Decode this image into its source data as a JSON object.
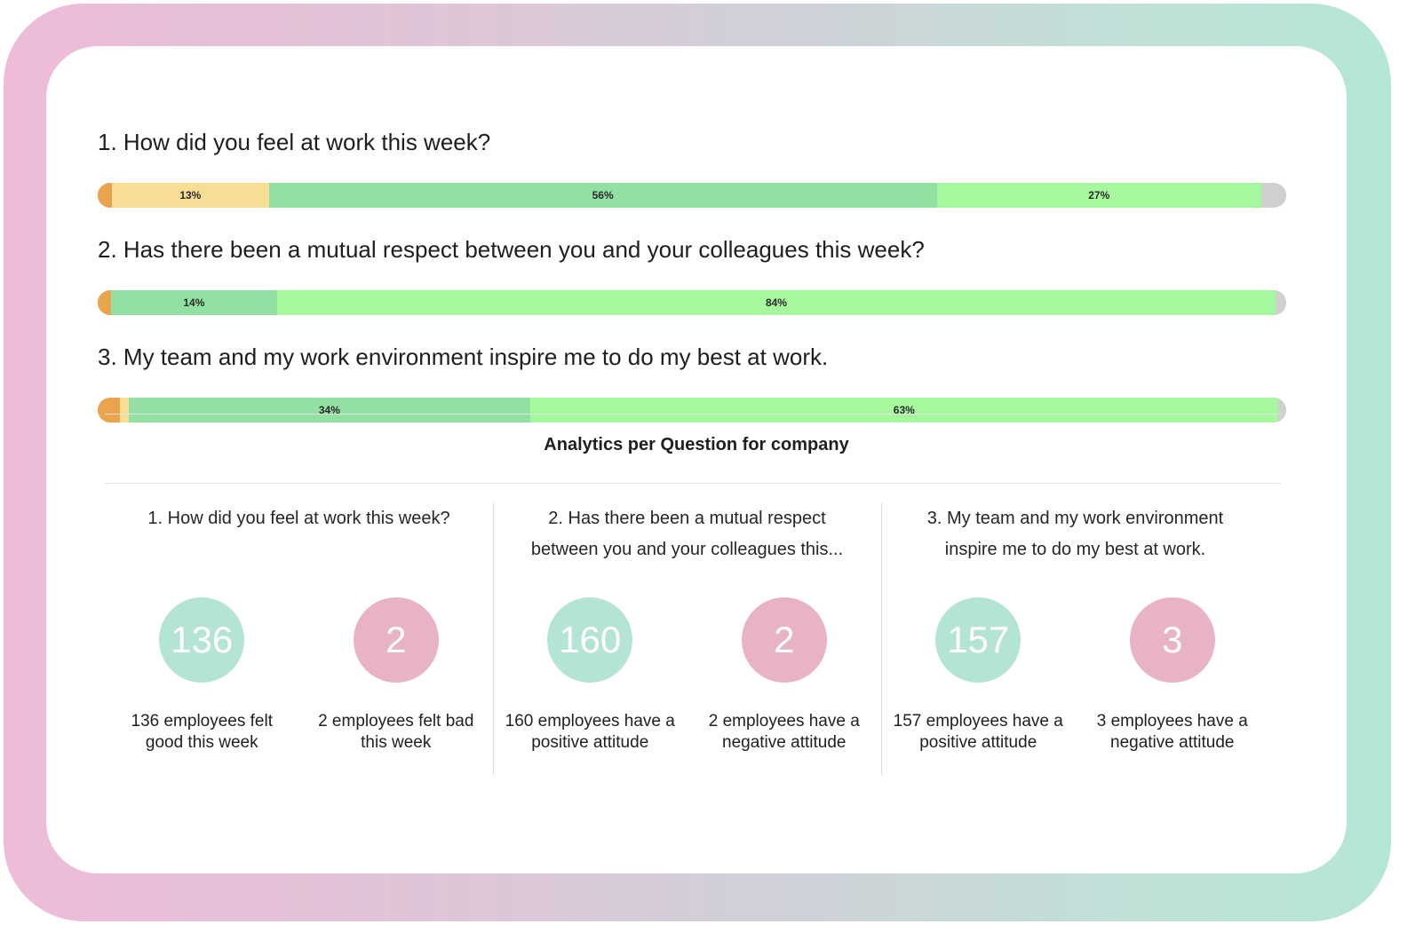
{
  "colors": {
    "very_bad": "#e9a44c",
    "bad": "#f7de94",
    "good": "#92e0a2",
    "very_good": "#a6f79e",
    "none": "#d0d0d0",
    "circle_good": "#b4e4d6",
    "circle_bad": "#e8b4c4"
  },
  "questions": [
    {
      "title": "1. How did you feel at work this week?",
      "segments": [
        {
          "level": "very_bad",
          "percent": 1.2,
          "label": ""
        },
        {
          "level": "bad",
          "percent": 13.2,
          "label": "13%"
        },
        {
          "level": "good",
          "percent": 56.2,
          "label": "56%"
        },
        {
          "level": "very_good",
          "percent": 27.3,
          "label": "27%"
        },
        {
          "level": "none",
          "percent": 2.1,
          "label": ""
        }
      ]
    },
    {
      "title": "2. Has there been a mutual respect between you and your colleagues this week?",
      "segments": [
        {
          "level": "very_bad",
          "percent": 1.1,
          "label": ""
        },
        {
          "level": "good",
          "percent": 14.0,
          "label": "14%"
        },
        {
          "level": "very_good",
          "percent": 84.0,
          "label": "84%"
        },
        {
          "level": "none",
          "percent": 0.9,
          "label": ""
        }
      ]
    },
    {
      "title": "3. My team and my work environment inspire me to do my best at work.",
      "segments": [
        {
          "level": "very_bad",
          "percent": 1.9,
          "label": ""
        },
        {
          "level": "bad",
          "percent": 0.7,
          "label": ""
        },
        {
          "level": "good",
          "percent": 33.8,
          "label": "34%"
        },
        {
          "level": "very_good",
          "percent": 62.9,
          "label": "63%"
        },
        {
          "level": "none",
          "percent": 0.7,
          "label": ""
        }
      ]
    }
  ],
  "analytics": {
    "title": "Analytics per Question for company",
    "columns": [
      {
        "title_line1": "1. How did you feel at work this week?",
        "title_line2": "",
        "good_count": "136",
        "good_desc": "136 employees felt good this week",
        "bad_count": "2",
        "bad_desc": "2 employees felt bad this week"
      },
      {
        "title_line1": "2. Has there been a mutual respect",
        "title_line2": "between you and your colleagues this...",
        "good_count": "160",
        "good_desc": "160 employees have a positive attitude",
        "bad_count": "2",
        "bad_desc": "2 employees have a negative attitude"
      },
      {
        "title_line1": "3. My team and my work environment",
        "title_line2": "inspire me to do my best at work.",
        "good_count": "157",
        "good_desc": "157 employees have a positive attitude",
        "bad_count": "3",
        "bad_desc": "3 employees have a negative attitude"
      }
    ]
  }
}
